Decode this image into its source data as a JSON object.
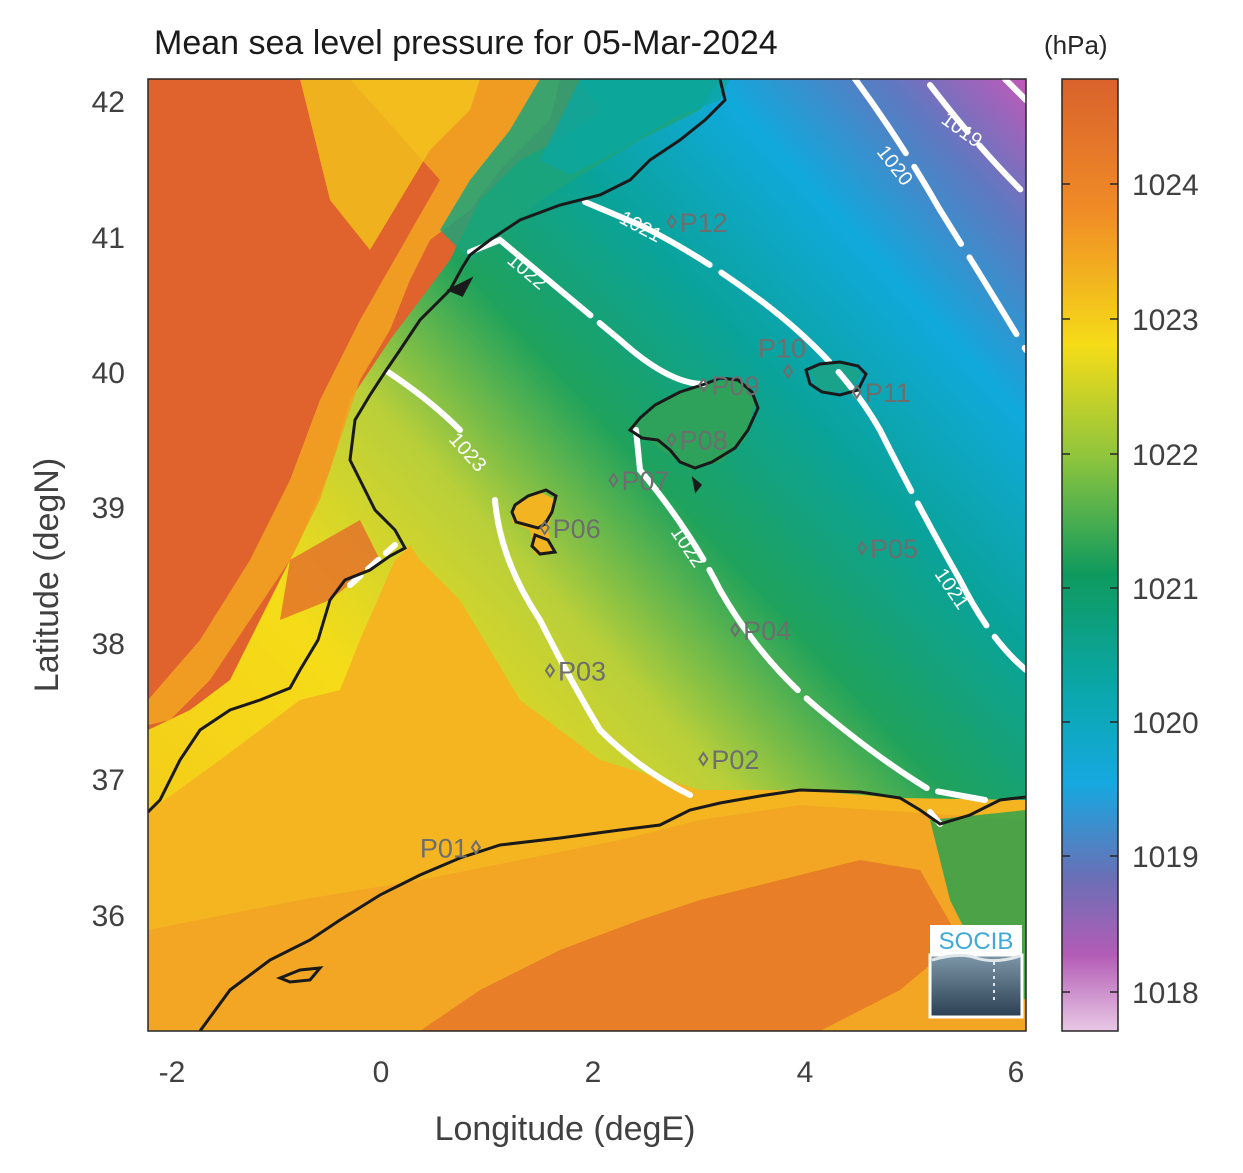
{
  "title": "Mean sea level pressure for 05-Mar-2024",
  "colorbar_unit": "(hPa)",
  "colorbar_ticks": [
    "1024",
    "1023",
    "1022",
    "1021",
    "1020",
    "1019",
    "1018"
  ],
  "x_ticks": [
    "-2",
    "0",
    "2",
    "4",
    "6"
  ],
  "y_ticks": [
    "42",
    "41",
    "40",
    "39",
    "38",
    "37",
    "36"
  ],
  "xlabel": "Longitude (degE)",
  "ylabel": "Latitude (degN)",
  "logo_text": "SOCIB",
  "colors": {
    "land_high": "#e0622c",
    "land_mid": "#f2a422",
    "sea_yellow": "#f5d71c",
    "sea_green": "#0e9a5e",
    "sea_teal": "#0aa6a0",
    "sea_blue": "#12a7dc",
    "purple": "#8a5aa6",
    "pink": "#e79ad2",
    "isobar": "#ffffff",
    "coast": "#1a1a1a",
    "point": "#6e6e6e"
  },
  "chart_data": {
    "type": "heatmap",
    "title": "Mean sea level pressure for 05-Mar-2024",
    "xlabel": "Longitude (degE)",
    "ylabel": "Latitude (degN)",
    "xlim": [
      -2.25,
      6.05
    ],
    "ylim": [
      35.15,
      42.15
    ],
    "colorbar": {
      "label": "(hPa)",
      "range": [
        1017.7,
        1024.7
      ],
      "ticks": [
        1018,
        1019,
        1020,
        1021,
        1022,
        1023,
        1024
      ]
    },
    "isobar_labels": [
      "1019",
      "1020",
      "1021",
      "1021",
      "1022",
      "1022",
      "1023"
    ],
    "stations": [
      {
        "name": "P01",
        "lon": 0.85,
        "lat": 36.5
      },
      {
        "name": "P02",
        "lon": 3.0,
        "lat": 37.15
      },
      {
        "name": "P03",
        "lon": 1.55,
        "lat": 37.8
      },
      {
        "name": "P04",
        "lon": 3.3,
        "lat": 38.1
      },
      {
        "name": "P05",
        "lon": 4.5,
        "lat": 38.7
      },
      {
        "name": "P06",
        "lon": 1.5,
        "lat": 38.85
      },
      {
        "name": "P07",
        "lon": 2.15,
        "lat": 39.2
      },
      {
        "name": "P08",
        "lon": 2.7,
        "lat": 39.5
      },
      {
        "name": "P09",
        "lon": 3.0,
        "lat": 39.9
      },
      {
        "name": "P10",
        "lon": 3.8,
        "lat": 40.0
      },
      {
        "name": "P11",
        "lon": 4.45,
        "lat": 39.85
      },
      {
        "name": "P12",
        "lon": 2.7,
        "lat": 41.1
      }
    ]
  }
}
